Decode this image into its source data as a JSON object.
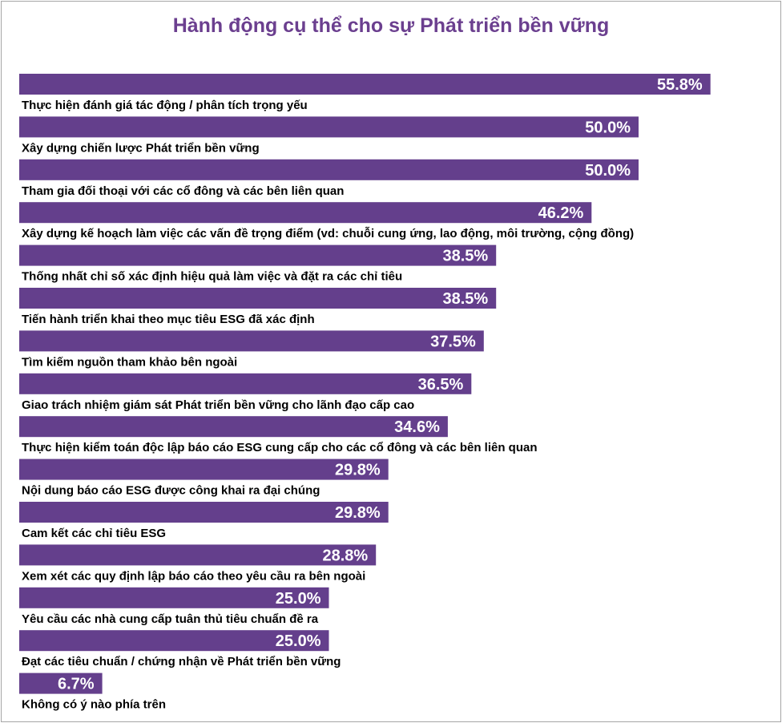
{
  "chart_data": {
    "type": "bar",
    "orientation": "horizontal",
    "title": "Hành động cụ thể cho sự Phát triển bền vững",
    "value_format": "percent",
    "bar_color": "#643f8c",
    "title_color": "#6b3f8f",
    "categories": [
      "Thực hiện đánh giá tác động / phân tích trọng yếu",
      "Xây dựng chiến lược Phát triển bền vững",
      "Tham gia đối thoại với các cổ đông và các bên liên quan",
      "Xây dựng kế hoạch làm việc các vấn đề trọng điểm (vd: chuỗi cung ứng, lao động, môi trường, cộng đồng)",
      "Thống nhất chỉ số xác định hiệu quả làm việc và đặt ra các chỉ tiêu",
      "Tiến hành triển khai theo mục tiêu ESG đã xác định",
      "Tìm kiếm nguồn tham khảo bên ngoài",
      "Giao trách nhiệm giám sát Phát triển bền vững cho lãnh đạo cấp cao",
      "Thực hiện kiểm toán độc lập báo cáo ESG cung cấp cho các cổ đông và các bên liên quan",
      "Nội dung báo cáo ESG được công khai ra đại chúng",
      "Cam kết các chỉ tiêu ESG",
      "Xem xét các quy định lập báo cáo theo yêu cầu ra bên ngoài",
      "Yêu cầu các nhà cung cấp tuân thủ tiêu chuẩn đề ra",
      "Đạt các tiêu chuẩn / chứng nhận về Phát triển bền vững",
      "Không có ý nào phía trên"
    ],
    "values": [
      55.8,
      50.0,
      50.0,
      46.2,
      38.5,
      38.5,
      37.5,
      36.5,
      34.6,
      29.8,
      29.8,
      28.8,
      25.0,
      25.0,
      6.7
    ],
    "value_labels": [
      "55.8%",
      "50.0%",
      "50.0%",
      "46.2%",
      "38.5%",
      "38.5%",
      "37.5%",
      "36.5%",
      "34.6%",
      "29.8%",
      "29.8%",
      "28.8%",
      "25.0%",
      "25.0%",
      "6.7%"
    ]
  }
}
